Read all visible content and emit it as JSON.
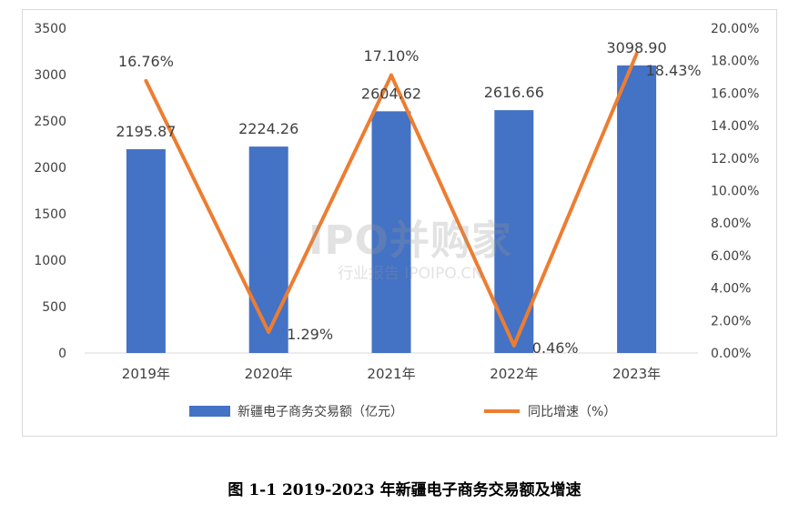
{
  "chart_data": {
    "type": "bar+line",
    "categories": [
      "2019年",
      "2020年",
      "2021年",
      "2022年",
      "2023年"
    ],
    "series": [
      {
        "name": "新疆电子商务交易额（亿元）",
        "type": "bar",
        "axis": "left",
        "color": "#4472C4",
        "values": [
          2195.87,
          2224.26,
          2604.62,
          2616.66,
          3098.9
        ],
        "labels": [
          "2195.87",
          "2224.26",
          "2604.62",
          "2616.66",
          "3098.90"
        ]
      },
      {
        "name": "同比增速（%）",
        "type": "line",
        "axis": "right",
        "color": "#ED7D31",
        "values": [
          16.76,
          1.29,
          17.1,
          0.46,
          18.43
        ],
        "labels": [
          "16.76%",
          "1.29%",
          "17.10%",
          "0.46%",
          "18.43%"
        ]
      }
    ],
    "y_left": {
      "min": 0,
      "max": 3500,
      "ticks": [
        "0",
        "500",
        "1000",
        "1500",
        "2000",
        "2500",
        "3000",
        "3500"
      ]
    },
    "y_right": {
      "min": 0,
      "max": 20,
      "ticks": [
        "0.00%",
        "2.00%",
        "4.00%",
        "6.00%",
        "8.00%",
        "10.00%",
        "12.00%",
        "14.00%",
        "16.00%",
        "18.00%",
        "20.00%"
      ]
    },
    "grid": false,
    "legend": "bottom",
    "title": ""
  },
  "watermark": {
    "main": "IPO并购家",
    "sub": "行业报告 IPOIPO.CN"
  },
  "caption": "图 1-1  2019-2023 年新疆电子商务交易额及增速"
}
